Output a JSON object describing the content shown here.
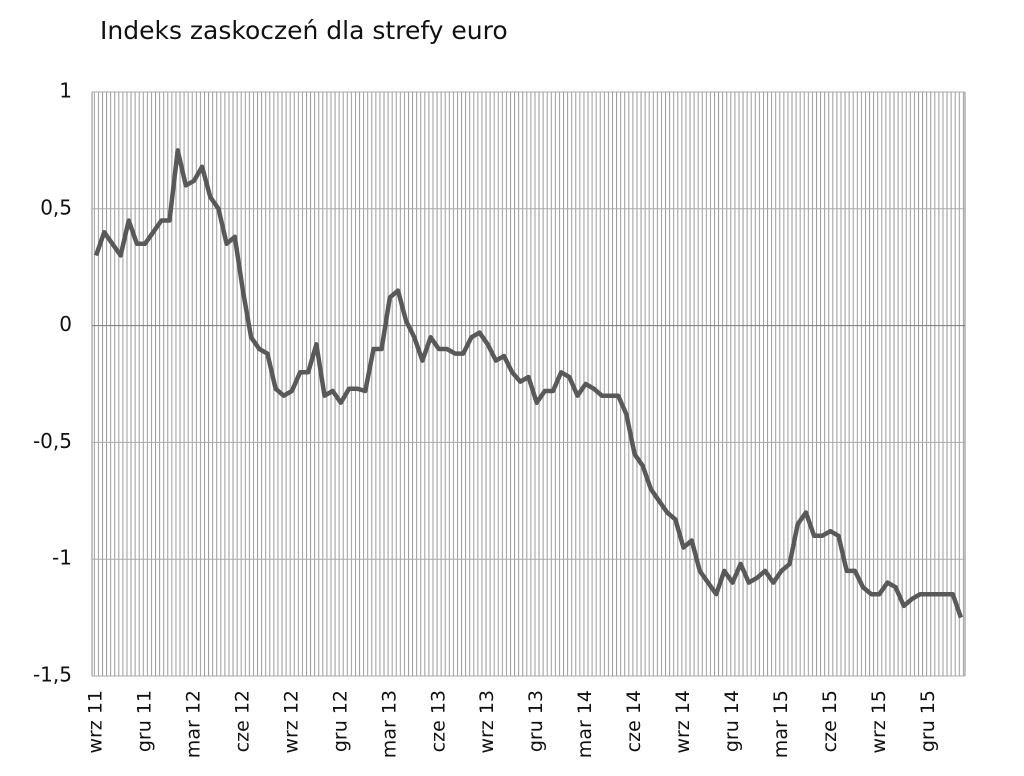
{
  "chart_data": {
    "type": "line",
    "title": "Indeks zaskoczeń dla strefy euro",
    "categories": [
      "wrz 11",
      null,
      null,
      null,
      null,
      null,
      "gru 11",
      null,
      null,
      null,
      null,
      null,
      "mar 12",
      null,
      null,
      null,
      null,
      null,
      "cze 12",
      null,
      null,
      null,
      null,
      null,
      "wrz 12",
      null,
      null,
      null,
      null,
      null,
      "gru 12",
      null,
      null,
      null,
      null,
      null,
      "mar 13",
      null,
      null,
      null,
      null,
      null,
      "cze 13",
      null,
      null,
      null,
      null,
      null,
      "wrz 13",
      null,
      null,
      null,
      null,
      null,
      "gru 13",
      null,
      null,
      null,
      null,
      null,
      "mar 14",
      null,
      null,
      null,
      null,
      null,
      "cze 14",
      null,
      null,
      null,
      null,
      null,
      "wrz 14",
      null,
      null,
      null,
      null,
      null,
      "gru 14",
      null,
      null,
      null,
      null,
      null,
      "mar 15",
      null,
      null,
      null,
      null,
      null,
      "cze 15",
      null,
      null,
      null,
      null,
      null,
      "wrz 15",
      null,
      null,
      null,
      null,
      null,
      "gru 15",
      null,
      null,
      null,
      null
    ],
    "values": [
      0.3,
      0.4,
      0.35,
      0.3,
      0.45,
      0.35,
      0.35,
      0.4,
      0.45,
      0.45,
      0.75,
      0.6,
      0.62,
      0.68,
      0.55,
      0.5,
      0.35,
      0.38,
      0.15,
      -0.05,
      -0.1,
      -0.12,
      -0.27,
      -0.3,
      -0.28,
      -0.2,
      -0.2,
      -0.08,
      -0.3,
      -0.28,
      -0.33,
      -0.27,
      -0.27,
      -0.28,
      -0.1,
      -0.1,
      0.12,
      0.15,
      0.02,
      -0.05,
      -0.15,
      -0.05,
      -0.1,
      -0.1,
      -0.12,
      -0.12,
      -0.05,
      -0.03,
      -0.08,
      -0.15,
      -0.13,
      -0.2,
      -0.24,
      -0.22,
      -0.33,
      -0.28,
      -0.28,
      -0.2,
      -0.22,
      -0.3,
      -0.25,
      -0.27,
      -0.3,
      -0.3,
      -0.3,
      -0.38,
      -0.55,
      -0.6,
      -0.7,
      -0.75,
      -0.8,
      -0.83,
      -0.95,
      -0.92,
      -1.05,
      -1.1,
      -1.15,
      -1.05,
      -1.1,
      -1.02,
      -1.1,
      -1.08,
      -1.05,
      -1.1,
      -1.05,
      -1.02,
      -0.85,
      -0.8,
      -0.9,
      -0.9,
      -0.88,
      -0.9,
      -1.05,
      -1.05,
      -1.12,
      -1.15,
      -1.15,
      -1.1,
      -1.12,
      -1.2,
      -1.17,
      -1.15,
      -1.15,
      -1.15,
      -1.15,
      -1.15,
      -1.25
    ],
    "color": "#595959",
    "ylim": [
      -1.5,
      1
    ],
    "yticks": [
      1,
      {
        "value": 0.5,
        "label": "0,5"
      },
      0,
      {
        "value": -0.5,
        "label": "-0,5"
      },
      -1,
      {
        "value": -1.5,
        "label": "-1,5"
      }
    ],
    "grid": true
  }
}
